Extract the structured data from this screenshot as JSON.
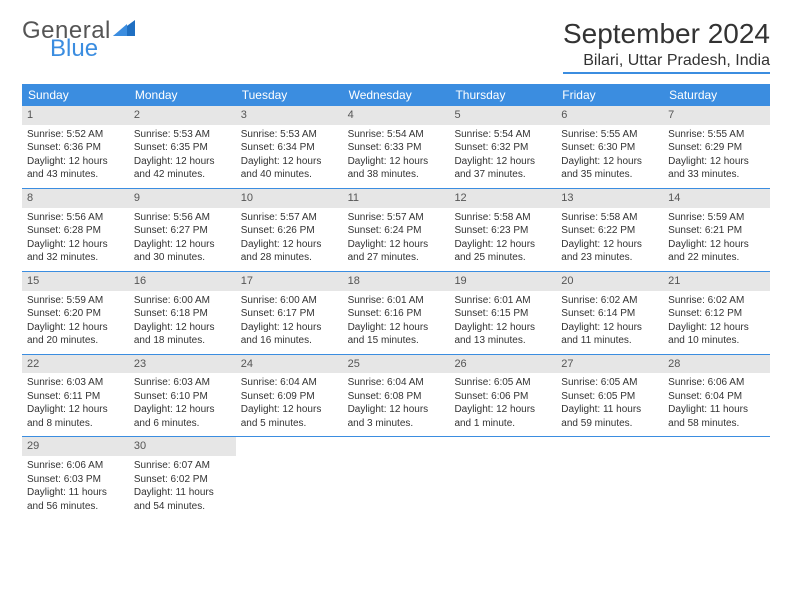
{
  "logo": {
    "word1": "General",
    "word2": "Blue"
  },
  "title": "September 2024",
  "location": "Bilari, Uttar Pradesh, India",
  "colors": {
    "accent": "#3b8de0",
    "band": "#e6e6e6",
    "text": "#333333",
    "logo_gray": "#555555"
  },
  "weekdays": [
    "Sunday",
    "Monday",
    "Tuesday",
    "Wednesday",
    "Thursday",
    "Friday",
    "Saturday"
  ],
  "weeks": [
    [
      {
        "n": "1",
        "sunrise": "Sunrise: 5:52 AM",
        "sunset": "Sunset: 6:36 PM",
        "day1": "Daylight: 12 hours",
        "day2": "and 43 minutes."
      },
      {
        "n": "2",
        "sunrise": "Sunrise: 5:53 AM",
        "sunset": "Sunset: 6:35 PM",
        "day1": "Daylight: 12 hours",
        "day2": "and 42 minutes."
      },
      {
        "n": "3",
        "sunrise": "Sunrise: 5:53 AM",
        "sunset": "Sunset: 6:34 PM",
        "day1": "Daylight: 12 hours",
        "day2": "and 40 minutes."
      },
      {
        "n": "4",
        "sunrise": "Sunrise: 5:54 AM",
        "sunset": "Sunset: 6:33 PM",
        "day1": "Daylight: 12 hours",
        "day2": "and 38 minutes."
      },
      {
        "n": "5",
        "sunrise": "Sunrise: 5:54 AM",
        "sunset": "Sunset: 6:32 PM",
        "day1": "Daylight: 12 hours",
        "day2": "and 37 minutes."
      },
      {
        "n": "6",
        "sunrise": "Sunrise: 5:55 AM",
        "sunset": "Sunset: 6:30 PM",
        "day1": "Daylight: 12 hours",
        "day2": "and 35 minutes."
      },
      {
        "n": "7",
        "sunrise": "Sunrise: 5:55 AM",
        "sunset": "Sunset: 6:29 PM",
        "day1": "Daylight: 12 hours",
        "day2": "and 33 minutes."
      }
    ],
    [
      {
        "n": "8",
        "sunrise": "Sunrise: 5:56 AM",
        "sunset": "Sunset: 6:28 PM",
        "day1": "Daylight: 12 hours",
        "day2": "and 32 minutes."
      },
      {
        "n": "9",
        "sunrise": "Sunrise: 5:56 AM",
        "sunset": "Sunset: 6:27 PM",
        "day1": "Daylight: 12 hours",
        "day2": "and 30 minutes."
      },
      {
        "n": "10",
        "sunrise": "Sunrise: 5:57 AM",
        "sunset": "Sunset: 6:26 PM",
        "day1": "Daylight: 12 hours",
        "day2": "and 28 minutes."
      },
      {
        "n": "11",
        "sunrise": "Sunrise: 5:57 AM",
        "sunset": "Sunset: 6:24 PM",
        "day1": "Daylight: 12 hours",
        "day2": "and 27 minutes."
      },
      {
        "n": "12",
        "sunrise": "Sunrise: 5:58 AM",
        "sunset": "Sunset: 6:23 PM",
        "day1": "Daylight: 12 hours",
        "day2": "and 25 minutes."
      },
      {
        "n": "13",
        "sunrise": "Sunrise: 5:58 AM",
        "sunset": "Sunset: 6:22 PM",
        "day1": "Daylight: 12 hours",
        "day2": "and 23 minutes."
      },
      {
        "n": "14",
        "sunrise": "Sunrise: 5:59 AM",
        "sunset": "Sunset: 6:21 PM",
        "day1": "Daylight: 12 hours",
        "day2": "and 22 minutes."
      }
    ],
    [
      {
        "n": "15",
        "sunrise": "Sunrise: 5:59 AM",
        "sunset": "Sunset: 6:20 PM",
        "day1": "Daylight: 12 hours",
        "day2": "and 20 minutes."
      },
      {
        "n": "16",
        "sunrise": "Sunrise: 6:00 AM",
        "sunset": "Sunset: 6:18 PM",
        "day1": "Daylight: 12 hours",
        "day2": "and 18 minutes."
      },
      {
        "n": "17",
        "sunrise": "Sunrise: 6:00 AM",
        "sunset": "Sunset: 6:17 PM",
        "day1": "Daylight: 12 hours",
        "day2": "and 16 minutes."
      },
      {
        "n": "18",
        "sunrise": "Sunrise: 6:01 AM",
        "sunset": "Sunset: 6:16 PM",
        "day1": "Daylight: 12 hours",
        "day2": "and 15 minutes."
      },
      {
        "n": "19",
        "sunrise": "Sunrise: 6:01 AM",
        "sunset": "Sunset: 6:15 PM",
        "day1": "Daylight: 12 hours",
        "day2": "and 13 minutes."
      },
      {
        "n": "20",
        "sunrise": "Sunrise: 6:02 AM",
        "sunset": "Sunset: 6:14 PM",
        "day1": "Daylight: 12 hours",
        "day2": "and 11 minutes."
      },
      {
        "n": "21",
        "sunrise": "Sunrise: 6:02 AM",
        "sunset": "Sunset: 6:12 PM",
        "day1": "Daylight: 12 hours",
        "day2": "and 10 minutes."
      }
    ],
    [
      {
        "n": "22",
        "sunrise": "Sunrise: 6:03 AM",
        "sunset": "Sunset: 6:11 PM",
        "day1": "Daylight: 12 hours",
        "day2": "and 8 minutes."
      },
      {
        "n": "23",
        "sunrise": "Sunrise: 6:03 AM",
        "sunset": "Sunset: 6:10 PM",
        "day1": "Daylight: 12 hours",
        "day2": "and 6 minutes."
      },
      {
        "n": "24",
        "sunrise": "Sunrise: 6:04 AM",
        "sunset": "Sunset: 6:09 PM",
        "day1": "Daylight: 12 hours",
        "day2": "and 5 minutes."
      },
      {
        "n": "25",
        "sunrise": "Sunrise: 6:04 AM",
        "sunset": "Sunset: 6:08 PM",
        "day1": "Daylight: 12 hours",
        "day2": "and 3 minutes."
      },
      {
        "n": "26",
        "sunrise": "Sunrise: 6:05 AM",
        "sunset": "Sunset: 6:06 PM",
        "day1": "Daylight: 12 hours",
        "day2": "and 1 minute."
      },
      {
        "n": "27",
        "sunrise": "Sunrise: 6:05 AM",
        "sunset": "Sunset: 6:05 PM",
        "day1": "Daylight: 11 hours",
        "day2": "and 59 minutes."
      },
      {
        "n": "28",
        "sunrise": "Sunrise: 6:06 AM",
        "sunset": "Sunset: 6:04 PM",
        "day1": "Daylight: 11 hours",
        "day2": "and 58 minutes."
      }
    ],
    [
      {
        "n": "29",
        "sunrise": "Sunrise: 6:06 AM",
        "sunset": "Sunset: 6:03 PM",
        "day1": "Daylight: 11 hours",
        "day2": "and 56 minutes."
      },
      {
        "n": "30",
        "sunrise": "Sunrise: 6:07 AM",
        "sunset": "Sunset: 6:02 PM",
        "day1": "Daylight: 11 hours",
        "day2": "and 54 minutes."
      },
      null,
      null,
      null,
      null,
      null
    ]
  ]
}
